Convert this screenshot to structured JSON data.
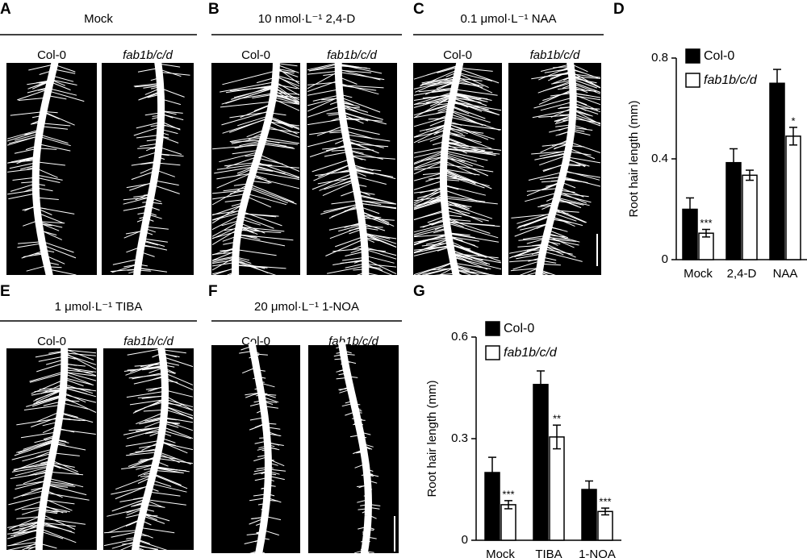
{
  "image_panels": [
    {
      "letter": "A",
      "title": "Mock",
      "columns": [
        "Col-0",
        "fab1b/c/d"
      ]
    },
    {
      "letter": "B",
      "title": "10 nmol·L⁻¹ 2,4-D",
      "columns": [
        "Col-0",
        "fab1b/c/d"
      ]
    },
    {
      "letter": "C",
      "title": "0.1 μmol·L⁻¹ NAA",
      "columns": [
        "Col-0",
        "fab1b/c/d"
      ]
    },
    {
      "letter": "E",
      "title": "1 μmol·L⁻¹ TIBA",
      "columns": [
        "Col-0",
        "fab1b/c/d"
      ]
    },
    {
      "letter": "F",
      "title": "20 μmol·L⁻¹ 1-NOA",
      "columns": [
        "Col-0",
        "fab1b/c/d"
      ]
    }
  ],
  "chart_data": [
    {
      "type": "bar",
      "panel": "D",
      "ylabel": "Root hair length (mm)",
      "categories": [
        "Mock",
        "2,4-D",
        "NAA"
      ],
      "series": [
        {
          "name": "Col-0",
          "color": "#000000",
          "values": [
            0.2,
            0.385,
            0.7
          ],
          "errors": [
            0.045,
            0.055,
            0.055
          ]
        },
        {
          "name": "fab1b/c/d",
          "color": "#ffffff",
          "values": [
            0.105,
            0.335,
            0.49
          ],
          "errors": [
            0.015,
            0.02,
            0.035
          ],
          "significance": [
            "***",
            null,
            "*"
          ]
        }
      ],
      "ylim": [
        0,
        0.8
      ],
      "yticks": [
        0,
        0.4,
        0.8
      ]
    },
    {
      "type": "bar",
      "panel": "G",
      "ylabel": "Root hair length (mm)",
      "categories": [
        "Mock",
        "TIBA",
        "1-NOA"
      ],
      "series": [
        {
          "name": "Col-0",
          "color": "#000000",
          "values": [
            0.2,
            0.46,
            0.15
          ],
          "errors": [
            0.045,
            0.04,
            0.025
          ]
        },
        {
          "name": "fab1b/c/d",
          "color": "#ffffff",
          "values": [
            0.105,
            0.305,
            0.085
          ],
          "errors": [
            0.012,
            0.035,
            0.01
          ],
          "significance": [
            "***",
            "**",
            "***"
          ]
        }
      ],
      "ylim": [
        0,
        0.6
      ],
      "yticks": [
        0,
        0.3,
        0.6
      ]
    }
  ]
}
